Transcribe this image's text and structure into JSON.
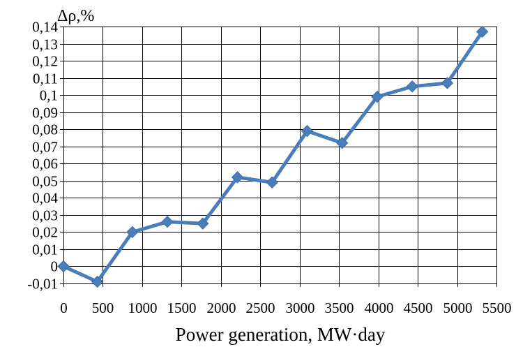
{
  "chart_data": {
    "type": "line",
    "title": "",
    "xlabel": "Power generation, MW·day",
    "ylabel": "Δρ,%",
    "xlim": [
      0,
      5500
    ],
    "ylim": [
      -0.01,
      0.14
    ],
    "x_ticks": [
      0,
      500,
      1000,
      1500,
      2000,
      2500,
      3000,
      3500,
      4000,
      4500,
      5000,
      5500
    ],
    "x_tick_labels": [
      "0",
      "500",
      "1000",
      "1500",
      "2000",
      "2500",
      "3000",
      "3500",
      "4000",
      "4500",
      "5000",
      "5500"
    ],
    "y_ticks": [
      -0.01,
      0,
      0.01,
      0.02,
      0.03,
      0.04,
      0.05,
      0.06,
      0.07,
      0.08,
      0.09,
      0.1,
      0.11,
      0.12,
      0.13,
      0.14
    ],
    "y_tick_labels": [
      "-0,01",
      "0",
      "0,01",
      "0,02",
      "0,03",
      "0,04",
      "0,05",
      "0,06",
      "0,07",
      "0,08",
      "0,09",
      "0,1",
      "0,11",
      "0,12",
      "0,13",
      "0,14"
    ],
    "grid": "vertical and horizontal",
    "legend": "none",
    "series": [
      {
        "color": "#4a7ebb",
        "marker": "diamond",
        "x": [
          0,
          430,
          875,
          1320,
          1770,
          2210,
          2650,
          3095,
          3540,
          3985,
          4430,
          4875,
          5320
        ],
        "y": [
          0,
          -0.009,
          0.02,
          0.026,
          0.025,
          0.052,
          0.049,
          0.079,
          0.072,
          0.099,
          0.105,
          0.107,
          0.137
        ]
      }
    ]
  }
}
